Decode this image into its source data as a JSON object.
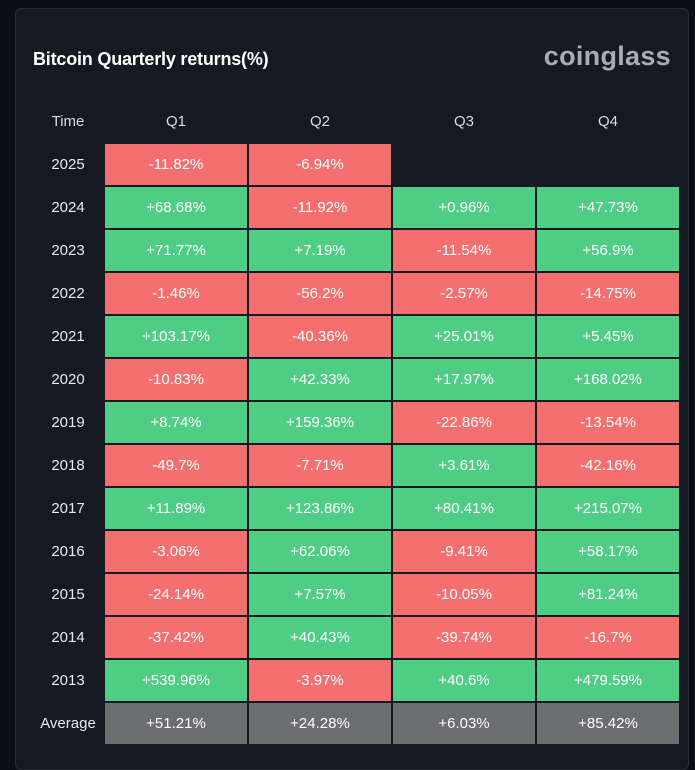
{
  "header": {
    "title": "Bitcoin Quarterly returns(%)",
    "brand": "coinglass"
  },
  "colors": {
    "positive": "#4fcd85",
    "negative": "#f46f6f",
    "average": "#6c6d70"
  },
  "chart_data": {
    "type": "table",
    "title": "Bitcoin Quarterly returns(%)",
    "columns": [
      "Time",
      "Q1",
      "Q2",
      "Q3",
      "Q4"
    ],
    "rows": [
      {
        "time": "2025",
        "values": [
          "-11.82%",
          "-6.94%",
          "",
          ""
        ]
      },
      {
        "time": "2024",
        "values": [
          "+68.68%",
          "-11.92%",
          "+0.96%",
          "+47.73%"
        ]
      },
      {
        "time": "2023",
        "values": [
          "+71.77%",
          "+7.19%",
          "-11.54%",
          "+56.9%"
        ]
      },
      {
        "time": "2022",
        "values": [
          "-1.46%",
          "-56.2%",
          "-2.57%",
          "-14.75%"
        ]
      },
      {
        "time": "2021",
        "values": [
          "+103.17%",
          "-40.36%",
          "+25.01%",
          "+5.45%"
        ]
      },
      {
        "time": "2020",
        "values": [
          "-10.83%",
          "+42.33%",
          "+17.97%",
          "+168.02%"
        ]
      },
      {
        "time": "2019",
        "values": [
          "+8.74%",
          "+159.36%",
          "-22.86%",
          "-13.54%"
        ]
      },
      {
        "time": "2018",
        "values": [
          "-49.7%",
          "-7.71%",
          "+3.61%",
          "-42.16%"
        ]
      },
      {
        "time": "2017",
        "values": [
          "+11.89%",
          "+123.86%",
          "+80.41%",
          "+215.07%"
        ]
      },
      {
        "time": "2016",
        "values": [
          "-3.06%",
          "+62.06%",
          "-9.41%",
          "+58.17%"
        ]
      },
      {
        "time": "2015",
        "values": [
          "-24.14%",
          "+7.57%",
          "-10.05%",
          "+81.24%"
        ]
      },
      {
        "time": "2014",
        "values": [
          "-37.42%",
          "+40.43%",
          "-39.74%",
          "-16.7%"
        ]
      },
      {
        "time": "2013",
        "values": [
          "+539.96%",
          "-3.97%",
          "+40.6%",
          "+479.59%"
        ]
      },
      {
        "time": "Average",
        "values": [
          "+51.21%",
          "+24.28%",
          "+6.03%",
          "+85.42%"
        ]
      }
    ]
  }
}
